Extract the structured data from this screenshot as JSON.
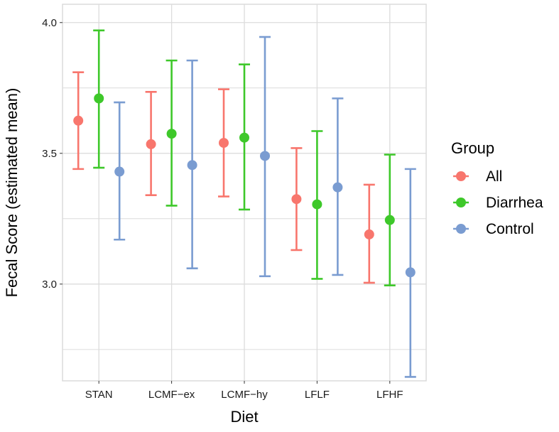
{
  "chart_data": {
    "type": "errorbar-point",
    "title": "",
    "xlabel": "Diet",
    "ylabel": "Fecal Score (estimated mean)",
    "ylim": [
      2.63,
      4.07
    ],
    "yticks": [
      3.0,
      3.5,
      4.0
    ],
    "ytick_labels": [
      "3.0",
      "3.5",
      "4.0"
    ],
    "grid": true,
    "legend_title": "Group",
    "legend_position": "right",
    "categories": [
      "STAN",
      "LCMF−ex",
      "LCMF−hy",
      "LFLF",
      "LFHF"
    ],
    "series": [
      {
        "name": "All",
        "color": "#F8766D",
        "mean": [
          3.625,
          3.535,
          3.54,
          3.325,
          3.19
        ],
        "lower": [
          3.44,
          3.34,
          3.335,
          3.13,
          3.005
        ],
        "upper": [
          3.81,
          3.735,
          3.745,
          3.52,
          3.38
        ]
      },
      {
        "name": "Diarrhea",
        "color": "#3EC82A",
        "mean": [
          3.71,
          3.575,
          3.56,
          3.305,
          3.245
        ],
        "lower": [
          3.445,
          3.3,
          3.285,
          3.02,
          2.995
        ],
        "upper": [
          3.97,
          3.855,
          3.84,
          3.585,
          3.495
        ]
      },
      {
        "name": "Control",
        "color": "#7A9CD1",
        "mean": [
          3.43,
          3.455,
          3.49,
          3.37,
          3.045
        ],
        "lower": [
          3.17,
          3.06,
          3.03,
          3.035,
          2.645
        ],
        "upper": [
          3.695,
          3.855,
          3.945,
          3.71,
          3.44
        ]
      }
    ]
  }
}
